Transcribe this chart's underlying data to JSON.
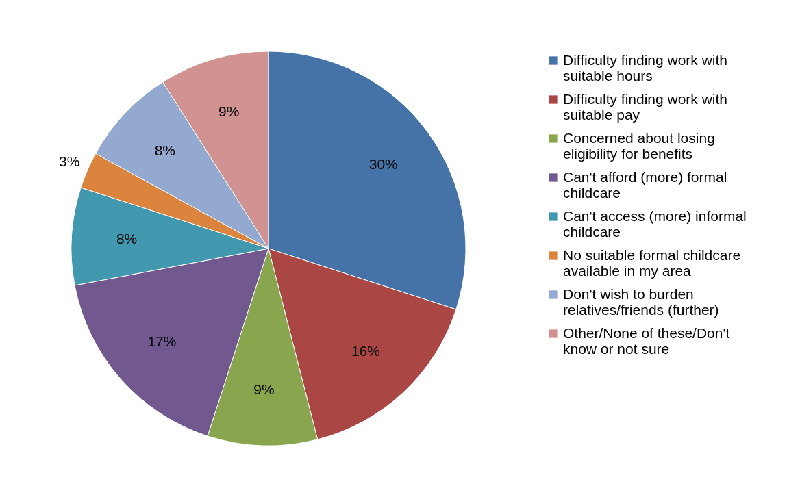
{
  "chart_data": {
    "type": "pie",
    "categories": [
      "Difficulty finding work with suitable hours",
      "Difficulty finding work with suitable pay",
      "Concerned about losing eligibility for benefits",
      "Can't afford (more) formal childcare",
      "Can't access (more) informal childcare",
      "No suitable formal childcare available in my area",
      "Don't wish to burden relatives/friends (further)",
      "Other/None of these/Don't know or not sure"
    ],
    "values": [
      30,
      16,
      9,
      17,
      8,
      3,
      8,
      9
    ],
    "value_labels": [
      "30%",
      "16%",
      "9%",
      "17%",
      "8%",
      "3%",
      "8%",
      "9%"
    ],
    "colors": [
      "#4572a7",
      "#aa4643",
      "#89a54e",
      "#71588f",
      "#4198af",
      "#db843d",
      "#93a9cf",
      "#d19392"
    ],
    "legend": "right"
  }
}
